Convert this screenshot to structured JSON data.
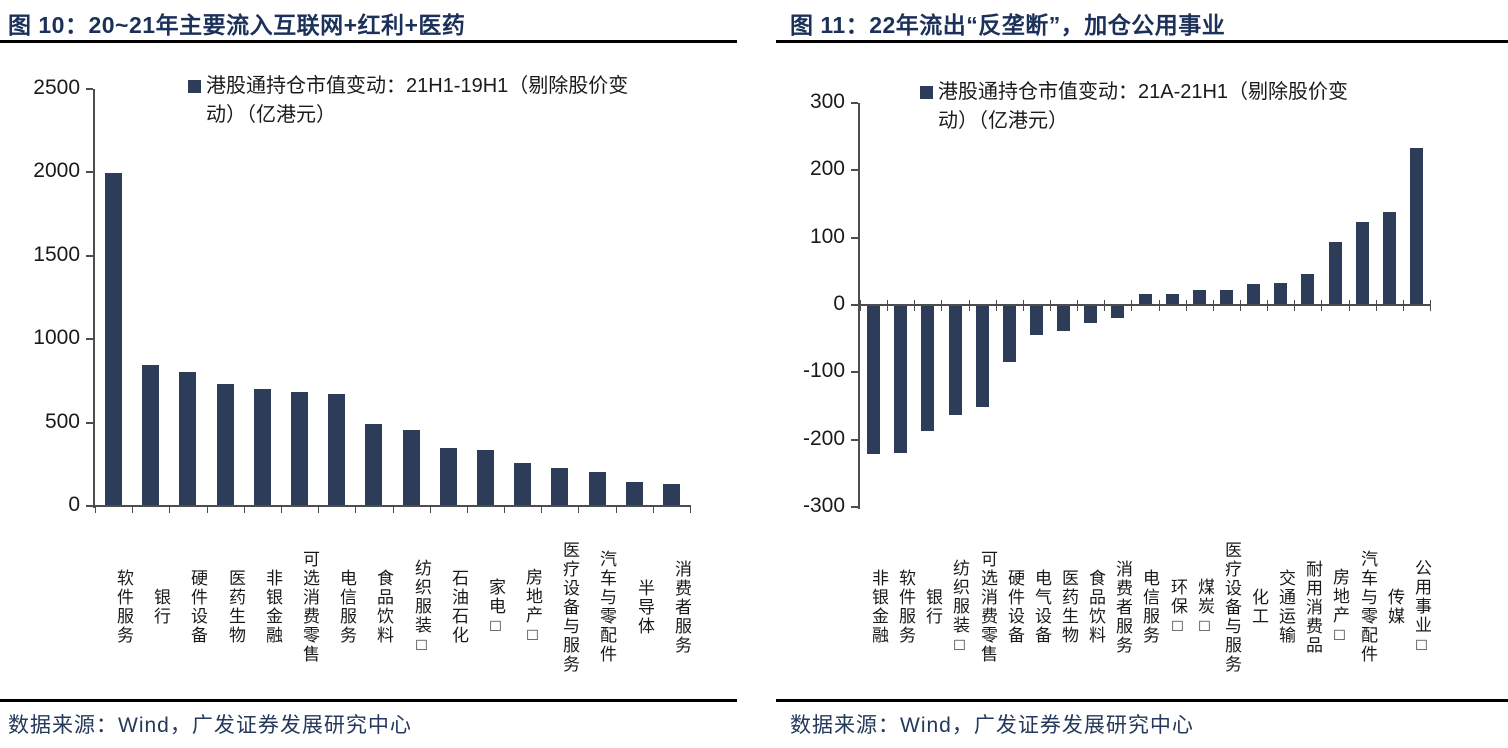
{
  "panels": [
    {
      "title": "图 10：20~21年主要流入互联网+红利+医药",
      "source": "数据来源：Wind，广发证券发展研究中心"
    },
    {
      "title": "图 11：22年流出“反垄断”，加仓公用事业",
      "source": "数据来源：Wind，广发证券发展研究中心"
    }
  ],
  "colors": {
    "bar": "#2d3c58",
    "title": "#1b3159",
    "rule": "#000000",
    "axis": "#4d4d4d",
    "source_text": "#24395b"
  },
  "chart_data": [
    {
      "type": "bar",
      "title": "图 10：20~21年主要流入互联网+红利+医药",
      "legend": "港股通持仓市值变动：21H1-19H1（剔除股价变动）（亿港元）",
      "legend_position": "top",
      "grid": false,
      "xlabel": "",
      "ylabel": "亿港元",
      "ylim": [
        0,
        2500
      ],
      "yticks": [
        0,
        500,
        1000,
        1500,
        2000,
        2500
      ],
      "bar_color": "#2d3c58",
      "categories": [
        "软件服务",
        "银行",
        "硬件设备",
        "医药生物",
        "非银金融",
        "可选消费零售",
        "电信服务",
        "食品饮料",
        "纺织服装□",
        "石油石化",
        "家电□",
        "房地产□",
        "医疗设备与服务",
        "汽车与零配件",
        "半导体",
        "消费者服务"
      ],
      "values": [
        1995,
        845,
        805,
        730,
        700,
        685,
        670,
        490,
        455,
        350,
        335,
        260,
        230,
        205,
        145,
        130
      ]
    },
    {
      "type": "bar",
      "title": "图 11：22年流出“反垄断”，加仓公用事业",
      "legend": "港股通持仓市值变动：21A-21H1（剔除股价变动）（亿港元）",
      "legend_position": "top",
      "grid": false,
      "xlabel": "",
      "ylabel": "亿港元",
      "ylim": [
        -300,
        300
      ],
      "yticks": [
        -300,
        -200,
        -100,
        0,
        100,
        200,
        300
      ],
      "bar_color": "#2d3c58",
      "categories": [
        "非银金融",
        "软件服务",
        "银行",
        "纺织服装□",
        "可选消费零售",
        "硬件设备",
        "电气设备",
        "医药生物",
        "食品饮料",
        "消费者服务",
        "电信服务",
        "环保□",
        "煤炭□",
        "医疗设备与服务",
        "化工",
        "交通运输",
        "耐用消费品",
        "房地产□",
        "汽车与零配件",
        "传媒",
        "公用事业□"
      ],
      "values": [
        -222,
        -220,
        -187,
        -164,
        -151,
        -85,
        -44,
        -38,
        -26,
        -20,
        16,
        16,
        22,
        22,
        31,
        32,
        46,
        93,
        123,
        138,
        233
      ]
    }
  ]
}
